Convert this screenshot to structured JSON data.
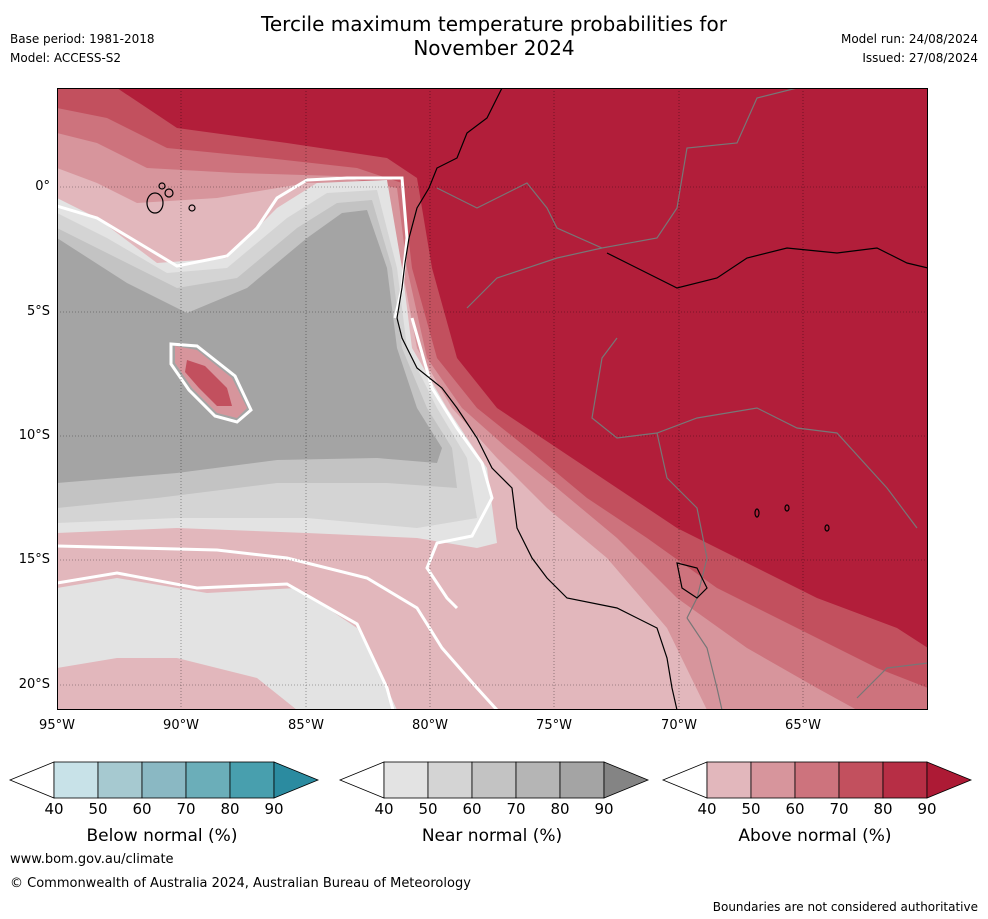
{
  "header": {
    "title_line1": "Tercile maximum temperature probabilities for",
    "title_line2": "November 2024",
    "base_period": "Base period: 1981-2018",
    "model": "Model: ACCESS-S2",
    "model_run": "Model run: 24/08/2024",
    "issued": "Issued: 27/08/2024"
  },
  "map": {
    "lat_labels": [
      "0°",
      "5°S",
      "10°S",
      "15°S",
      "20°S"
    ],
    "lon_labels": [
      "95°W",
      "90°W",
      "85°W",
      "80°W",
      "75°W",
      "70°W",
      "65°W"
    ],
    "colors": {
      "above_90": "#b21e3a",
      "above_80": "#c2505e",
      "above_70": "#cd737d",
      "above_60": "#d7959c",
      "above_50": "#e2b7bc",
      "near_70": "#c3c3c3",
      "near_60": "#d4d4d4",
      "near_50": "#e3e3e3",
      "near_80": "#a4a4a4",
      "border": "#777777",
      "coast": "#000000"
    }
  },
  "colorbars": [
    {
      "name": "Below normal (%)",
      "ticks": [
        "40",
        "50",
        "60",
        "70",
        "80",
        "90"
      ],
      "colors": [
        "#ffffff",
        "#c8e2e8",
        "#a6c9d0",
        "#8ab8c3",
        "#6baeb9",
        "#489fae",
        "#2b8ba0"
      ]
    },
    {
      "name": "Near normal (%)",
      "ticks": [
        "40",
        "50",
        "60",
        "70",
        "80",
        "90"
      ],
      "colors": [
        "#ffffff",
        "#e3e3e3",
        "#d4d4d4",
        "#c3c3c3",
        "#b5b5b5",
        "#a4a4a4",
        "#848484"
      ]
    },
    {
      "name": "Above normal (%)",
      "ticks": [
        "40",
        "50",
        "60",
        "70",
        "80",
        "90"
      ],
      "colors": [
        "#ffffff",
        "#e2b7bc",
        "#d7959c",
        "#cd737d",
        "#c2505e",
        "#b72e45",
        "#ad1a35"
      ]
    }
  ],
  "footer": {
    "website": "www.bom.gov.au/climate",
    "copyright": "© Commonwealth of Australia 2024, Australian Bureau of Meteorology",
    "disclaimer": "Boundaries are not considered authoritative"
  }
}
